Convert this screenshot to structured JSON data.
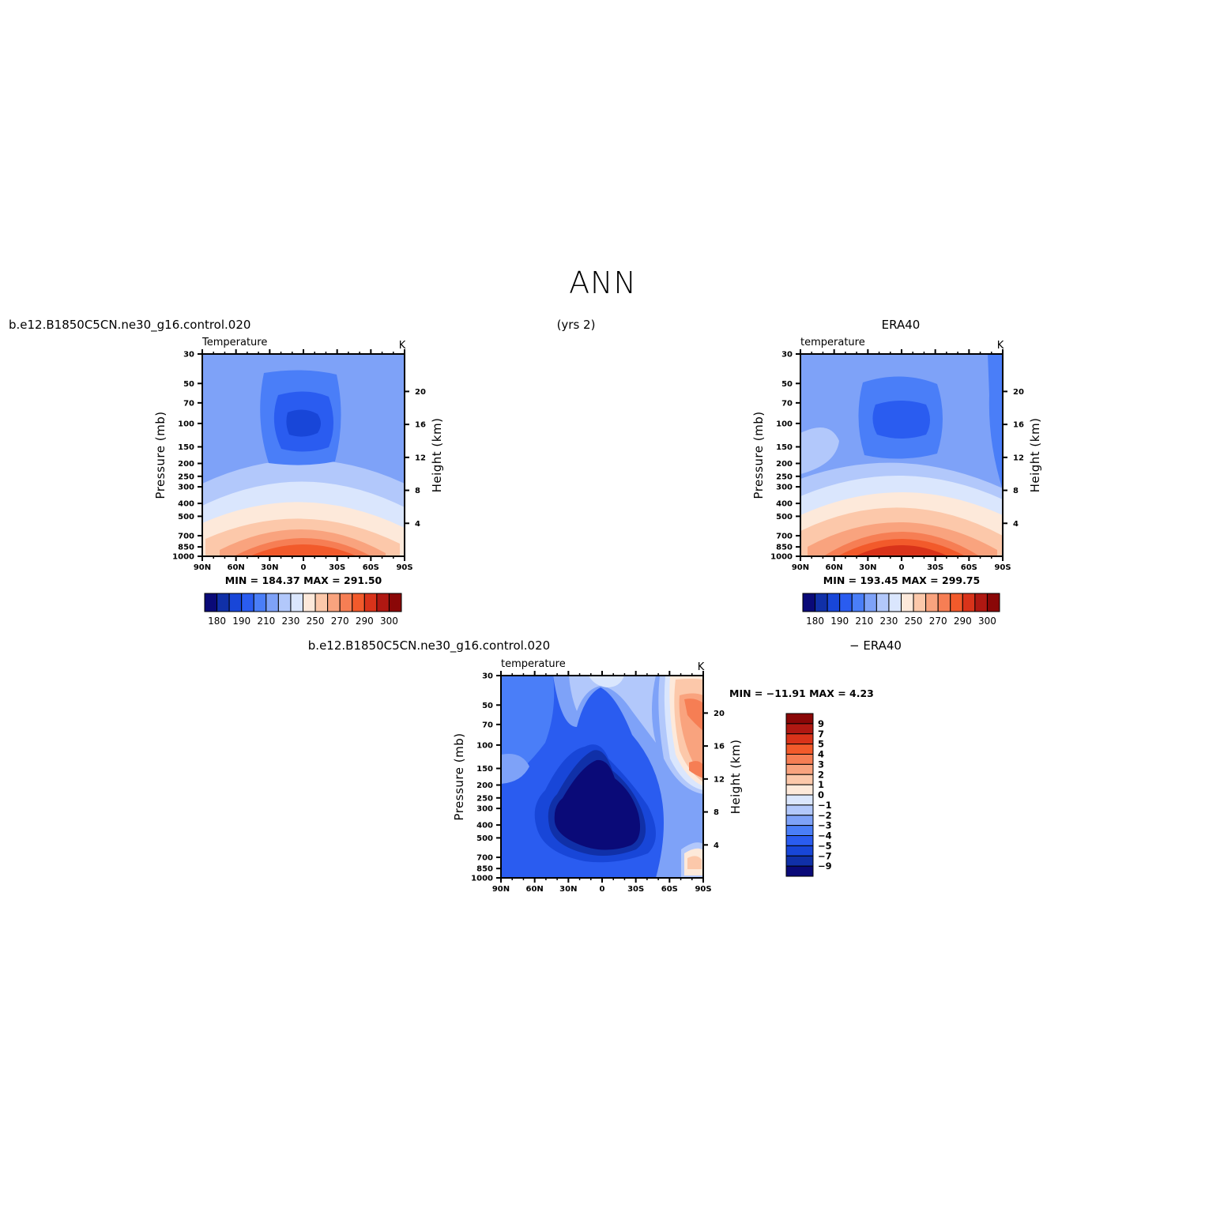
{
  "figure": {
    "title": "ANN",
    "left_header": "b.e12.B1850C5CN.ne30_g16.control.020",
    "center_header": "(yrs 2)",
    "right_header": "ERA40",
    "diff_header_left": "b.e12.B1850C5CN.ne30_g16.control.020",
    "diff_header_right": "− ERA40"
  },
  "chart_data": [
    {
      "type": "heatmap",
      "panel": "model",
      "title": "Temperature",
      "units": "K",
      "ylabel": "Pressure (mb)",
      "ylabel_right": "Height (km)",
      "x_ticks": [
        "90N",
        "60N",
        "30N",
        "0",
        "30S",
        "60S",
        "90S"
      ],
      "y_ticks": [
        "30",
        "50",
        "70",
        "100",
        "150",
        "200",
        "250",
        "300",
        "400",
        "500",
        "700",
        "850",
        "1000"
      ],
      "y_ticks_right": [
        "20",
        "16",
        "12",
        "8",
        "4"
      ],
      "stats": "MIN = 184.37   MAX = 291.50",
      "colorbar_labels": [
        "180",
        "190",
        "210",
        "230",
        "250",
        "270",
        "290",
        "300"
      ],
      "min": 184.37,
      "max": 291.5
    },
    {
      "type": "heatmap",
      "panel": "obs",
      "title": "temperature",
      "units": "K",
      "ylabel": "Pressure (mb)",
      "ylabel_right": "Height (km)",
      "x_ticks": [
        "90N",
        "60N",
        "30N",
        "0",
        "30S",
        "60S",
        "90S"
      ],
      "y_ticks": [
        "30",
        "50",
        "70",
        "100",
        "150",
        "200",
        "250",
        "300",
        "400",
        "500",
        "700",
        "850",
        "1000"
      ],
      "y_ticks_right": [
        "20",
        "16",
        "12",
        "8",
        "4"
      ],
      "stats": "MIN = 193.45   MAX = 299.75",
      "colorbar_labels": [
        "180",
        "190",
        "210",
        "230",
        "250",
        "270",
        "290",
        "300"
      ],
      "min": 193.45,
      "max": 299.75
    },
    {
      "type": "heatmap",
      "panel": "difference",
      "title": "temperature",
      "units": "K",
      "ylabel": "Pressure (mb)",
      "ylabel_right": "Height (km)",
      "x_ticks": [
        "90N",
        "60N",
        "30N",
        "0",
        "30S",
        "60S",
        "90S"
      ],
      "y_ticks": [
        "30",
        "50",
        "70",
        "100",
        "150",
        "200",
        "250",
        "300",
        "400",
        "500",
        "700",
        "850",
        "1000"
      ],
      "y_ticks_right": [
        "20",
        "16",
        "12",
        "8",
        "4"
      ],
      "stats": "MIN = −11.91   MAX =    4.23",
      "colorbar_labels": [
        "9",
        "7",
        "5",
        "4",
        "3",
        "2",
        "1",
        "0",
        "−1",
        "−2",
        "−3",
        "−4",
        "−5",
        "−7",
        "−9"
      ],
      "min": -11.91,
      "max": 4.23
    }
  ],
  "colors": {
    "abs_levels": [
      "#0a0a78",
      "#1030a8",
      "#1846d8",
      "#2a5cf0",
      "#4a7ef8",
      "#7ea2f8",
      "#b2c8fb",
      "#dae6fd",
      "#fde9da",
      "#fcc8aa",
      "#f9a37e",
      "#f67e54",
      "#f25a2b",
      "#d9331a",
      "#b01812",
      "#8a0707"
    ],
    "diff_levels": [
      "#8a0707",
      "#b01812",
      "#d9331a",
      "#f25a2b",
      "#f67e54",
      "#f9a37e",
      "#fcc8aa",
      "#fde9da",
      "#dae6fd",
      "#b2c8fb",
      "#7ea2f8",
      "#4a7ef8",
      "#2a5cf0",
      "#1846d8",
      "#1030a8",
      "#0a0a78"
    ]
  }
}
